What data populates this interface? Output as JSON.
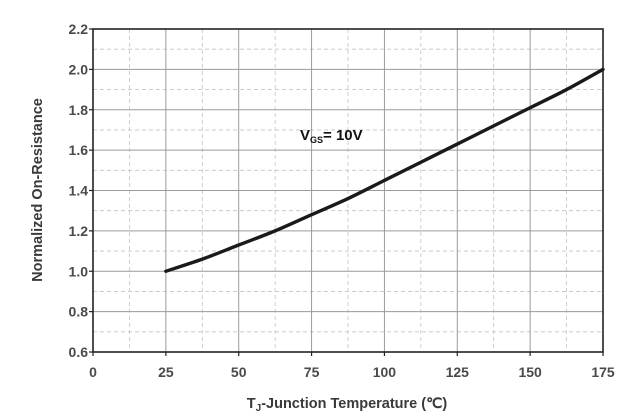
{
  "chart_data": {
    "type": "line",
    "xlabel_main": "T",
    "xlabel_sub": "J",
    "xlabel_rest": "-Junction Temperature (℃)",
    "ylabel": "Normalized On-Resistance",
    "annotation_main": "V",
    "annotation_sub": "GS",
    "annotation_rest": "= 10V",
    "xlim": [
      0,
      175
    ],
    "ylim": [
      0.6,
      2.2
    ],
    "x_ticks": [
      0,
      25,
      50,
      75,
      100,
      125,
      150,
      175
    ],
    "y_ticks": [
      0.6,
      0.8,
      1.0,
      1.2,
      1.4,
      1.6,
      1.8,
      2.0,
      2.2
    ],
    "x_tick_labels": [
      "0",
      "25",
      "50",
      "75",
      "100",
      "125",
      "150",
      "175"
    ],
    "y_tick_labels": [
      "0.6",
      "0.8",
      "1.0",
      "1.2",
      "1.4",
      "1.6",
      "1.8",
      "2.0",
      "2.2"
    ],
    "grid": true,
    "series": [
      {
        "x": [
          25,
          37.5,
          50,
          62.5,
          75,
          87.5,
          100,
          112.5,
          125,
          137.5,
          150,
          162.5,
          175
        ],
        "values": [
          1.0,
          1.06,
          1.13,
          1.2,
          1.28,
          1.36,
          1.45,
          1.54,
          1.63,
          1.72,
          1.81,
          1.9,
          2.0
        ]
      }
    ],
    "colors": {
      "line": "#1a1a1a",
      "grid": "#9a9a9a",
      "frame": "#222222"
    }
  }
}
